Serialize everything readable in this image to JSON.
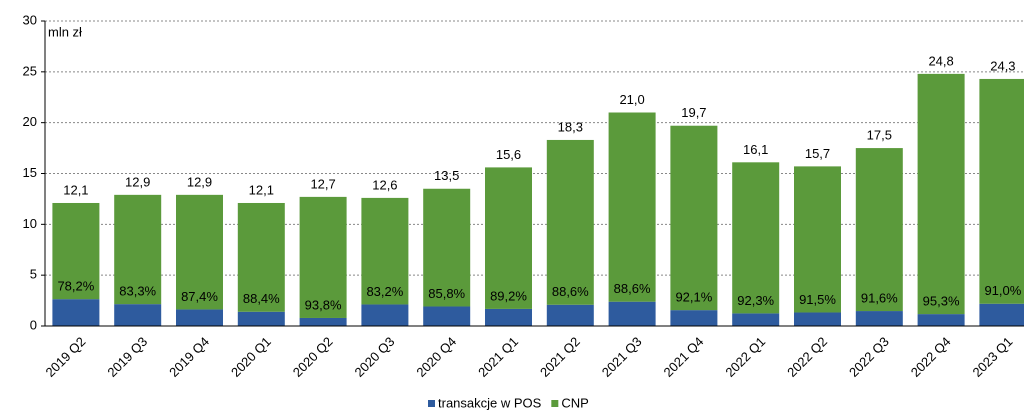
{
  "chart_data": {
    "type": "stacked_bar",
    "y_label": "mln zł",
    "categories": [
      "2019 Q2",
      "2019 Q3",
      "2019 Q4",
      "2020 Q1",
      "2020 Q2",
      "2020 Q3",
      "2020 Q4",
      "2021 Q1",
      "2021 Q2",
      "2021 Q3",
      "2021 Q4",
      "2022 Q1",
      "2022 Q2",
      "2022 Q3",
      "2022 Q4",
      "2023 Q1"
    ],
    "series": [
      {
        "name": "transakcje w POS",
        "color": "#2e5b9e",
        "values": [
          2.64,
          2.15,
          1.63,
          1.4,
          0.79,
          2.12,
          1.92,
          1.68,
          2.09,
          2.39,
          1.56,
          1.24,
          1.33,
          1.47,
          1.17,
          2.19
        ]
      },
      {
        "name": "CNP",
        "color": "#5b9a3b",
        "values": [
          9.46,
          10.75,
          11.27,
          10.7,
          11.91,
          10.48,
          11.58,
          13.92,
          16.21,
          18.61,
          18.14,
          14.86,
          14.37,
          16.03,
          23.63,
          22.11
        ]
      }
    ],
    "totals": [
      12.1,
      12.9,
      12.9,
      12.1,
      12.7,
      12.6,
      13.5,
      15.6,
      18.3,
      21.0,
      19.7,
      16.1,
      15.7,
      17.5,
      24.8,
      24.3
    ],
    "total_labels": [
      "12,1",
      "12,9",
      "12,9",
      "12,1",
      "12,7",
      "12,6",
      "13,5",
      "15,6",
      "18,3",
      "21,0",
      "19,7",
      "16,1",
      "15,7",
      "17,5",
      "24,8",
      "24,3"
    ],
    "cnp_share": [
      78.2,
      83.3,
      87.4,
      88.4,
      93.8,
      83.2,
      85.8,
      89.2,
      88.6,
      88.6,
      92.1,
      92.3,
      91.5,
      91.6,
      95.3,
      91.0
    ],
    "cnp_share_labels": [
      "78,2%",
      "83,3%",
      "87,4%",
      "88,4%",
      "93,8%",
      "83,2%",
      "85,8%",
      "89,2%",
      "88,6%",
      "88,6%",
      "92,1%",
      "92,3%",
      "91,5%",
      "91,6%",
      "95,3%",
      "91,0%"
    ],
    "ylim": [
      0,
      30
    ],
    "yticks": [
      0,
      5,
      10,
      15,
      20,
      25,
      30
    ],
    "grid": true,
    "legend": "bottom"
  }
}
